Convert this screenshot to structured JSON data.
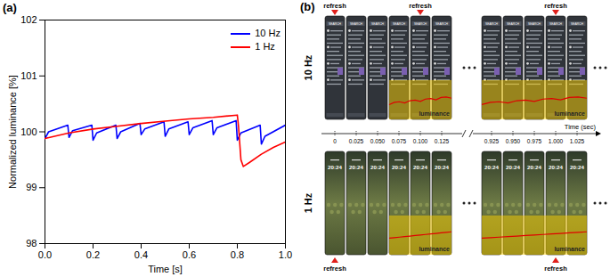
{
  "chart_data": {
    "type": "line",
    "title": "(a)",
    "x_label": "Time [s]",
    "y_label": "Normalized luminance [%]",
    "xlim": [
      0,
      1
    ],
    "xticks": [
      {
        "value": 0,
        "label": "0.0"
      },
      0.2,
      0.4,
      0.6,
      0.8,
      {
        "value": 1,
        "label": "1.0"
      }
    ],
    "ylim": [
      98,
      102
    ],
    "yticks": [
      98,
      99,
      100,
      101,
      102
    ],
    "grid": false,
    "legend": "top-right",
    "series": [
      {
        "name": "10 Hz",
        "color": "#0000ff",
        "x": [
          0,
          0.015,
          0.095,
          0.1,
          0.115,
          0.195,
          0.2,
          0.215,
          0.295,
          0.3,
          0.315,
          0.395,
          0.4,
          0.415,
          0.495,
          0.5,
          0.515,
          0.595,
          0.6,
          0.615,
          0.695,
          0.7,
          0.715,
          0.795,
          0.8,
          0.815,
          0.895,
          0.9,
          0.915,
          1.0
        ],
        "values": [
          99.88,
          100.0,
          100.12,
          99.9,
          100.02,
          100.12,
          99.85,
          99.98,
          100.12,
          99.88,
          100.0,
          100.15,
          99.95,
          100.05,
          100.18,
          99.92,
          100.05,
          100.18,
          99.95,
          100.07,
          100.2,
          99.95,
          100.07,
          100.2,
          99.85,
          99.98,
          100.12,
          99.78,
          99.92,
          100.12
        ]
      },
      {
        "name": "1 Hz",
        "color": "#ff0000",
        "x": [
          0,
          0.1,
          0.2,
          0.3,
          0.4,
          0.5,
          0.6,
          0.7,
          0.8,
          0.805,
          0.815,
          0.825,
          0.85,
          0.9,
          0.95,
          1.0
        ],
        "values": [
          99.88,
          99.98,
          100.05,
          100.1,
          100.15,
          100.19,
          100.23,
          100.26,
          100.3,
          100.1,
          99.5,
          99.38,
          99.45,
          99.6,
          99.72,
          99.82
        ]
      }
    ]
  },
  "diagram": {
    "label": "(b)",
    "refresh_label": "refresh",
    "overlay_label": "luminance",
    "rows": [
      {
        "label": "10 Hz",
        "screen": "SEARCH",
        "refresh_at": [
          "0",
          "0.100",
          "1.000"
        ]
      },
      {
        "label": "1 Hz",
        "screen": "20:24",
        "refresh_at": [
          "0",
          "1.000"
        ]
      }
    ],
    "time_axis": {
      "label": "Time (sec)",
      "ticks": [
        [
          "0",
          "0.025",
          "0.050",
          "0.075",
          "0.100",
          "0.125"
        ],
        [
          "0.925",
          "0.950",
          "0.975",
          "1.000",
          "1.025"
        ]
      ]
    }
  }
}
